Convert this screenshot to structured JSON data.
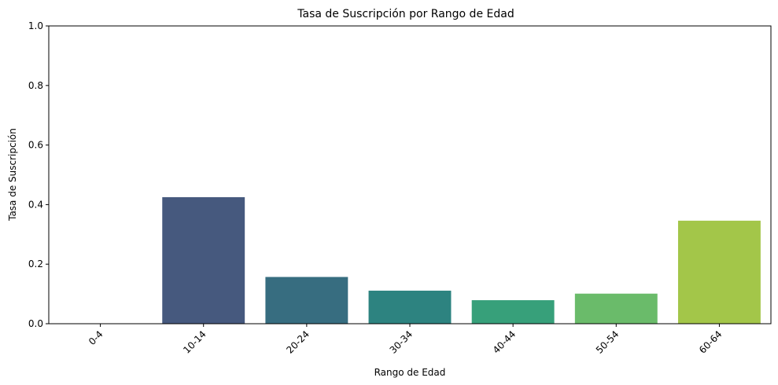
{
  "chart_data": {
    "type": "bar",
    "title": "Tasa de Suscripción por Rango de Edad",
    "xlabel": "Rango de Edad",
    "ylabel": "Tasa de Suscripción",
    "categories": [
      "0-4",
      "10-14",
      "20-24",
      "30-34",
      "40-44",
      "50-54",
      "60-64"
    ],
    "values": [
      0.0,
      0.425,
      0.157,
      0.111,
      0.079,
      0.101,
      0.346
    ],
    "colors": [
      "#440154",
      "#46597e",
      "#376d80",
      "#2d8380",
      "#37a07a",
      "#6abb6a",
      "#a3c649"
    ],
    "ylim": [
      0,
      1.0
    ],
    "yticks": [
      "0.0",
      "0.2",
      "0.4",
      "0.6",
      "0.8",
      "1.0"
    ],
    "ytick_values": [
      0,
      0.2,
      0.4,
      0.6,
      0.8,
      1.0
    ],
    "grid": false,
    "legend": "none"
  }
}
